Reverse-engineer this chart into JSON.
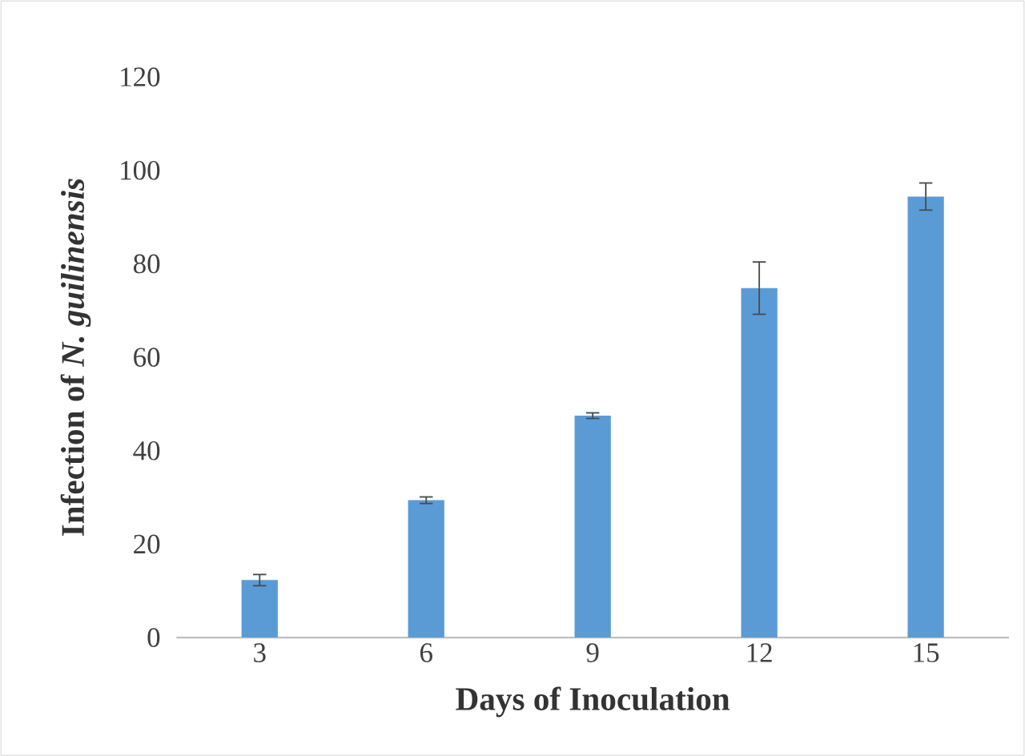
{
  "chart_data": {
    "type": "bar",
    "xlabel": "Days of Inoculation",
    "ylabel": "Infection of *N. guilinensis*",
    "categories": [
      "3",
      "6",
      "9",
      "12",
      "15"
    ],
    "values": [
      12.3,
      29.4,
      47.5,
      74.8,
      94.4
    ],
    "errors": [
      1.2,
      0.7,
      0.6,
      5.6,
      2.9
    ],
    "color": "#5b9bd5",
    "ylim": [
      0,
      120
    ],
    "yticks": [
      0,
      20,
      40,
      60,
      80,
      100,
      120
    ],
    "grid": false
  }
}
